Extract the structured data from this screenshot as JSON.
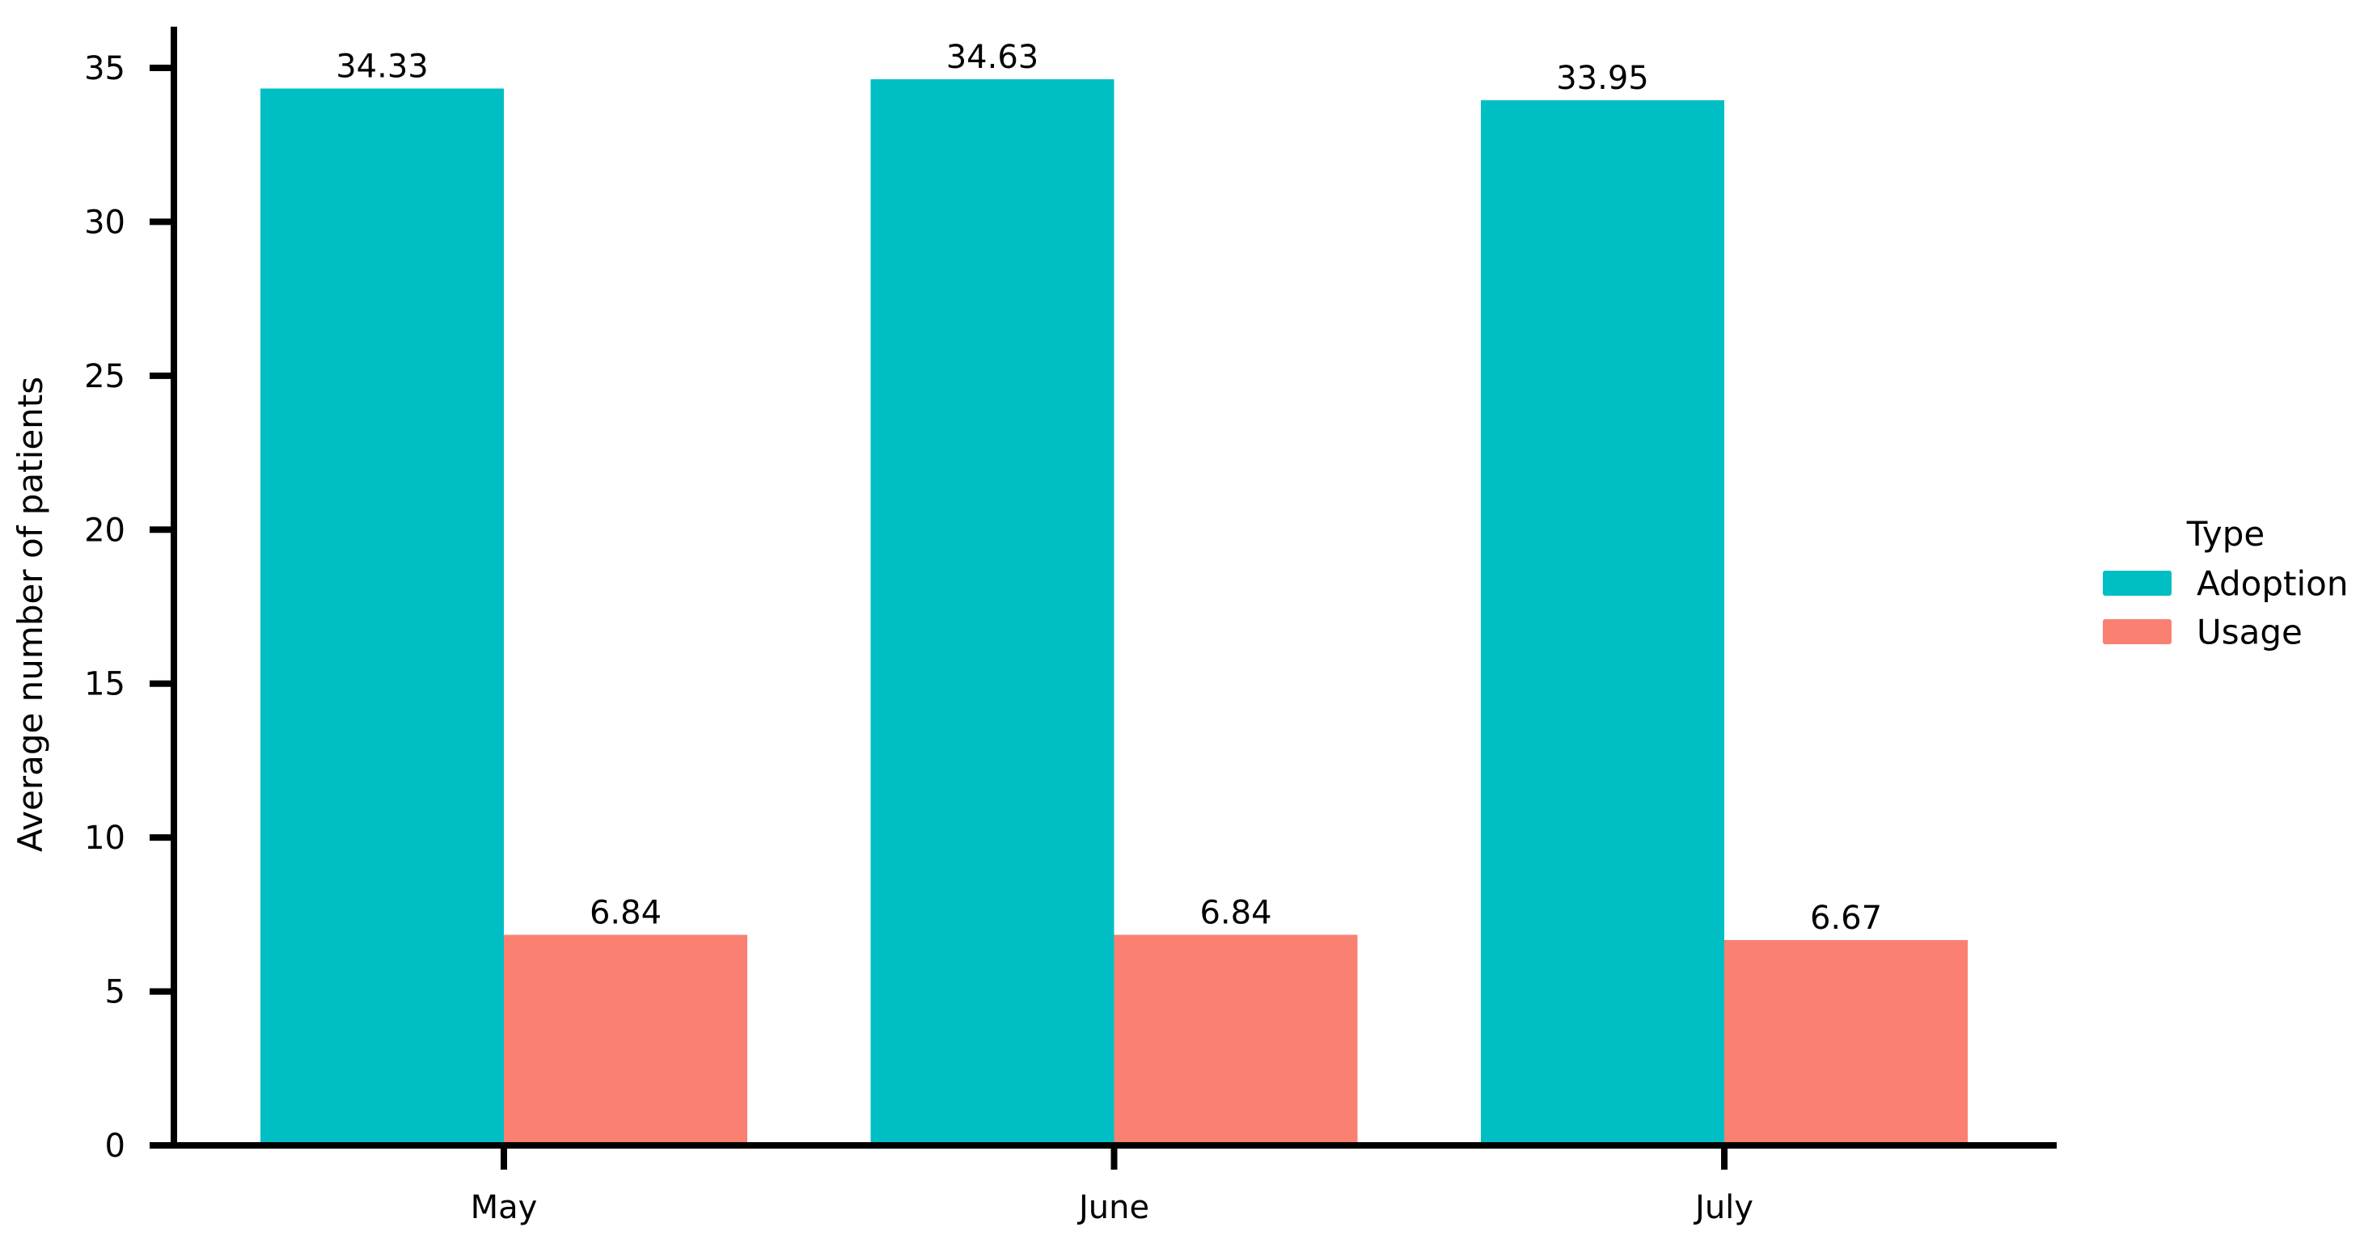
{
  "chart_data": {
    "type": "bar",
    "title": "",
    "categories": [
      "May",
      "June",
      "July"
    ],
    "series": [
      {
        "name": "Adoption",
        "color": "#00BFC4",
        "values": [
          34.33,
          34.63,
          33.95
        ]
      },
      {
        "name": "Usage",
        "color": "#FA8072",
        "values": [
          6.84,
          6.84,
          6.67
        ]
      }
    ],
    "value_labels": {
      "Adoption": [
        "34.33",
        "34.63",
        "33.95"
      ],
      "Usage": [
        "6.84",
        "6.84",
        "6.67"
      ]
    },
    "xlabel": "",
    "ylabel": "Average number of patients",
    "yticks": [
      0,
      5,
      10,
      15,
      20,
      25,
      30,
      35
    ],
    "ylim": [
      0,
      36.3
    ],
    "grid": false,
    "legend": {
      "title": "Type",
      "position": "right-of-plot",
      "entries": [
        "Adoption",
        "Usage"
      ]
    },
    "colors": {
      "axis": "#000000",
      "text": "#000000",
      "background": "#ffffff"
    }
  }
}
